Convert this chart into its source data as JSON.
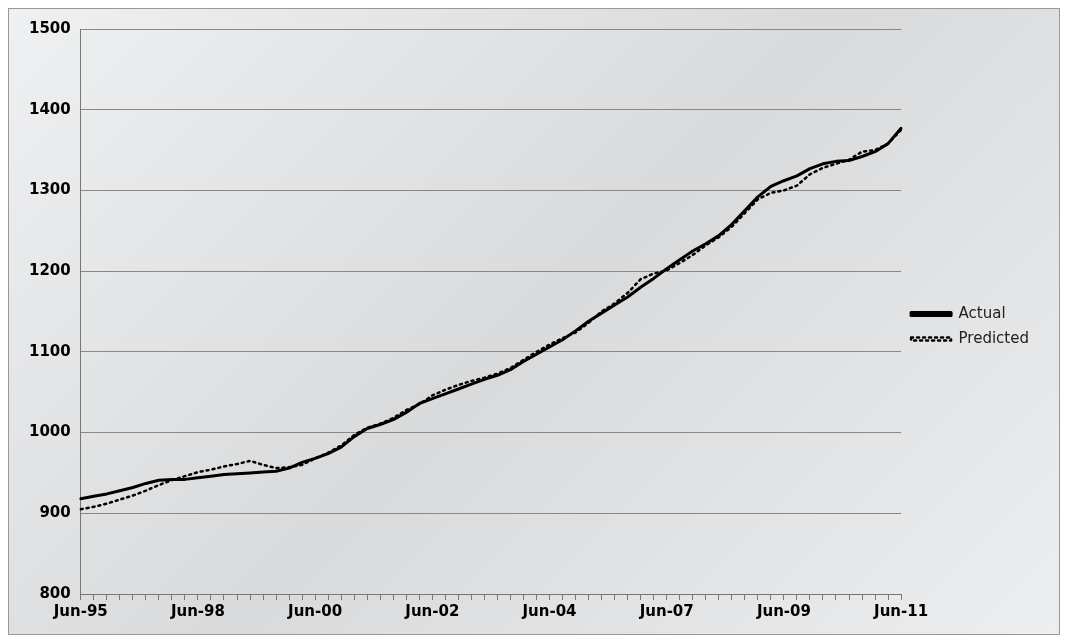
{
  "chart_data": {
    "type": "line",
    "categories": [
      "Jun-95",
      null,
      null,
      null,
      null,
      null,
      null,
      null,
      null,
      "Jun-98",
      null,
      null,
      null,
      null,
      null,
      null,
      null,
      null,
      "Jun-00",
      null,
      null,
      null,
      null,
      null,
      null,
      null,
      null,
      "Jun-02",
      null,
      null,
      null,
      null,
      null,
      null,
      null,
      null,
      "Jun-04",
      null,
      null,
      null,
      null,
      null,
      null,
      null,
      null,
      "Jun-07",
      null,
      null,
      null,
      null,
      null,
      null,
      null,
      null,
      "Jun-09",
      null,
      null,
      null,
      null,
      null,
      null,
      null,
      null,
      "Jun-11"
    ],
    "series": [
      {
        "name": "Actual",
        "color": "#000000",
        "line_style": "solid",
        "values": [
          918,
          921,
          924,
          928,
          932,
          937,
          941,
          942,
          942,
          944,
          946,
          948,
          949,
          950,
          951,
          952,
          956,
          963,
          968,
          974,
          982,
          995,
          1005,
          1010,
          1016,
          1025,
          1036,
          1042,
          1048,
          1054,
          1060,
          1066,
          1071,
          1078,
          1088,
          1097,
          1106,
          1115,
          1126,
          1138,
          1148,
          1158,
          1168,
          1180,
          1191,
          1203,
          1214,
          1225,
          1234,
          1244,
          1258,
          1275,
          1292,
          1305,
          1312,
          1318,
          1327,
          1333,
          1336,
          1337,
          1342,
          1348,
          1358,
          1377
        ]
      },
      {
        "name": "Predicted",
        "color": "#000000",
        "line_style": "dotted",
        "values": [
          905,
          908,
          912,
          917,
          922,
          928,
          935,
          941,
          946,
          951,
          954,
          958,
          961,
          965,
          960,
          956,
          957,
          960,
          968,
          975,
          984,
          997,
          1006,
          1011,
          1018,
          1028,
          1035,
          1046,
          1053,
          1059,
          1064,
          1068,
          1073,
          1080,
          1090,
          1100,
          1109,
          1117,
          1124,
          1136,
          1150,
          1160,
          1173,
          1190,
          1197,
          1201,
          1210,
          1220,
          1232,
          1242,
          1255,
          1272,
          1289,
          1297,
          1300,
          1306,
          1320,
          1328,
          1333,
          1338,
          1348,
          1350,
          1358,
          1375
        ]
      }
    ],
    "ylim": [
      800,
      1500
    ],
    "yticks": [
      800,
      900,
      1000,
      1100,
      1200,
      1300,
      1400,
      1500
    ],
    "grid": "y",
    "legend": "right",
    "marker": "none"
  }
}
